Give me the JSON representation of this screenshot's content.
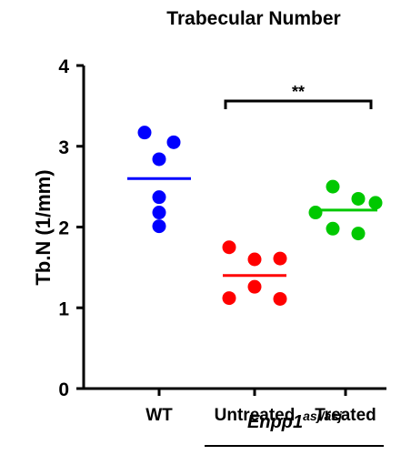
{
  "chart_data": {
    "type": "scatter",
    "title": "Trabecular Number",
    "ylabel": "Tb.N (1/mm)",
    "xlabel": "",
    "ylim": [
      0,
      4
    ],
    "yticks": [
      "0",
      "1",
      "2",
      "3",
      "4"
    ],
    "categories": [
      "WT",
      "Untreated",
      "Treated"
    ],
    "group_label": {
      "base": "Enpp1",
      "superscript": "asj/asj"
    },
    "grid": false,
    "significance": {
      "from": "Untreated",
      "to": "Treated",
      "label": "**"
    },
    "series": [
      {
        "category": "WT",
        "color": "#0000ff",
        "values": [
          3.17,
          3.05,
          2.84,
          2.37,
          2.18,
          2.01
        ],
        "mean": 2.6
      },
      {
        "category": "Untreated",
        "color": "#ff0000",
        "values": [
          1.75,
          1.6,
          1.61,
          1.26,
          1.12,
          1.11
        ],
        "mean": 1.4
      },
      {
        "category": "Treated",
        "color": "#00c800",
        "values": [
          2.5,
          2.35,
          2.3,
          2.18,
          1.98,
          1.92
        ],
        "mean": 2.21
      }
    ]
  }
}
